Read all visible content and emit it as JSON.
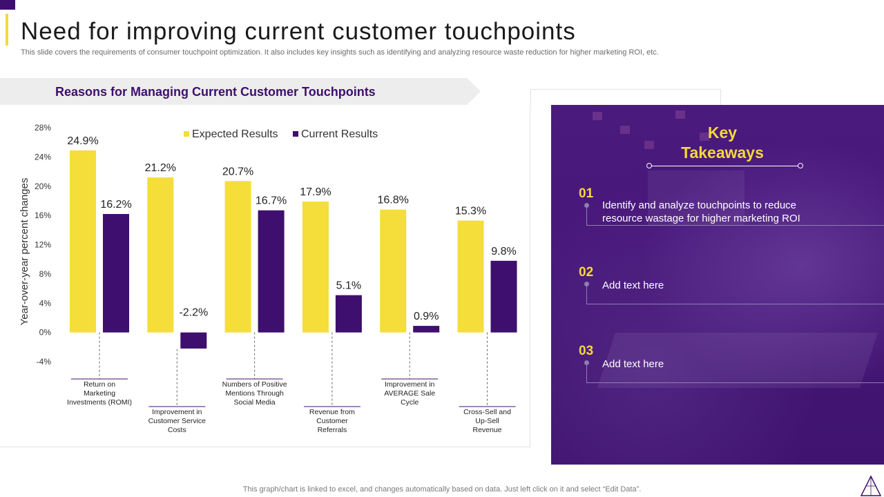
{
  "page": {
    "title": "Need for improving current customer touchpoints",
    "subtitle": "This slide covers the requirements of consumer touchpoint optimization. It also includes key insights such as identifying and analyzing resource waste reduction for higher marketing ROI, etc.",
    "section_title": "Reasons for Managing Current Customer Touchpoints",
    "footnote": "This graph/chart is linked to excel,  and changes automatically based on data. Just left click on it and select “Edit Data”."
  },
  "colors": {
    "expected": "#F5DD3A",
    "current": "#3E0F6E",
    "accent": "#F5D83A",
    "section_title": "#3E0F6E"
  },
  "chart_data": {
    "type": "bar",
    "title": "Reasons for Managing Current Customer Touchpoints",
    "ylabel": "Year-over-year  percent changes",
    "xlabel": "",
    "ylim": [
      -4,
      28
    ],
    "yticks": [
      -4,
      0,
      4,
      8,
      12,
      16,
      20,
      24,
      28
    ],
    "ytick_labels": [
      "-4%",
      "0%",
      "4%",
      "8%",
      "12%",
      "16%",
      "20%",
      "24%",
      "28%"
    ],
    "legend_position": "top-center",
    "categories": [
      "Return on Marketing Investments (ROMI)",
      "Improvement in Customer Service Costs",
      "Numbers of Positive Mentions Through Social Media",
      "Revenue from Customer Referrals",
      "Improvement in AVERAGE Sale Cycle",
      "Cross-Sell and Up-Sell Revenue"
    ],
    "category_label_lines": [
      [
        "Return on",
        "Marketing",
        "Investments (ROMI)"
      ],
      [
        "Improvement in",
        "Customer Service",
        "Costs"
      ],
      [
        "Numbers of Positive",
        "Mentions Through",
        "Social Media"
      ],
      [
        "Revenue from",
        "Customer",
        "Referrals"
      ],
      [
        "Improvement in",
        "AVERAGE Sale",
        "Cycle"
      ],
      [
        "Cross-Sell and",
        "Up-Sell",
        "Revenue"
      ]
    ],
    "series": [
      {
        "name": "Expected Results",
        "values": [
          24.9,
          21.2,
          20.7,
          17.9,
          16.8,
          15.3
        ],
        "labels": [
          "24.9%",
          "21.2%",
          "20.7%",
          "17.9%",
          "16.8%",
          "15.3%"
        ]
      },
      {
        "name": "Current Results",
        "values": [
          16.2,
          -2.2,
          16.7,
          5.1,
          0.9,
          9.8
        ],
        "labels": [
          "16.2%",
          "-2.2%",
          "16.7%",
          "5.1%",
          "0.9%",
          "9.8%"
        ]
      }
    ]
  },
  "takeaways": {
    "title_line1": "Key",
    "title_line2": "Takeaways",
    "items": [
      {
        "number": "01",
        "text": "Identify and analyze  touchpoints to reduce resource wastage for higher marketing ROI"
      },
      {
        "number": "02",
        "text": "Add text here"
      },
      {
        "number": "03",
        "text": "Add text here"
      }
    ]
  }
}
